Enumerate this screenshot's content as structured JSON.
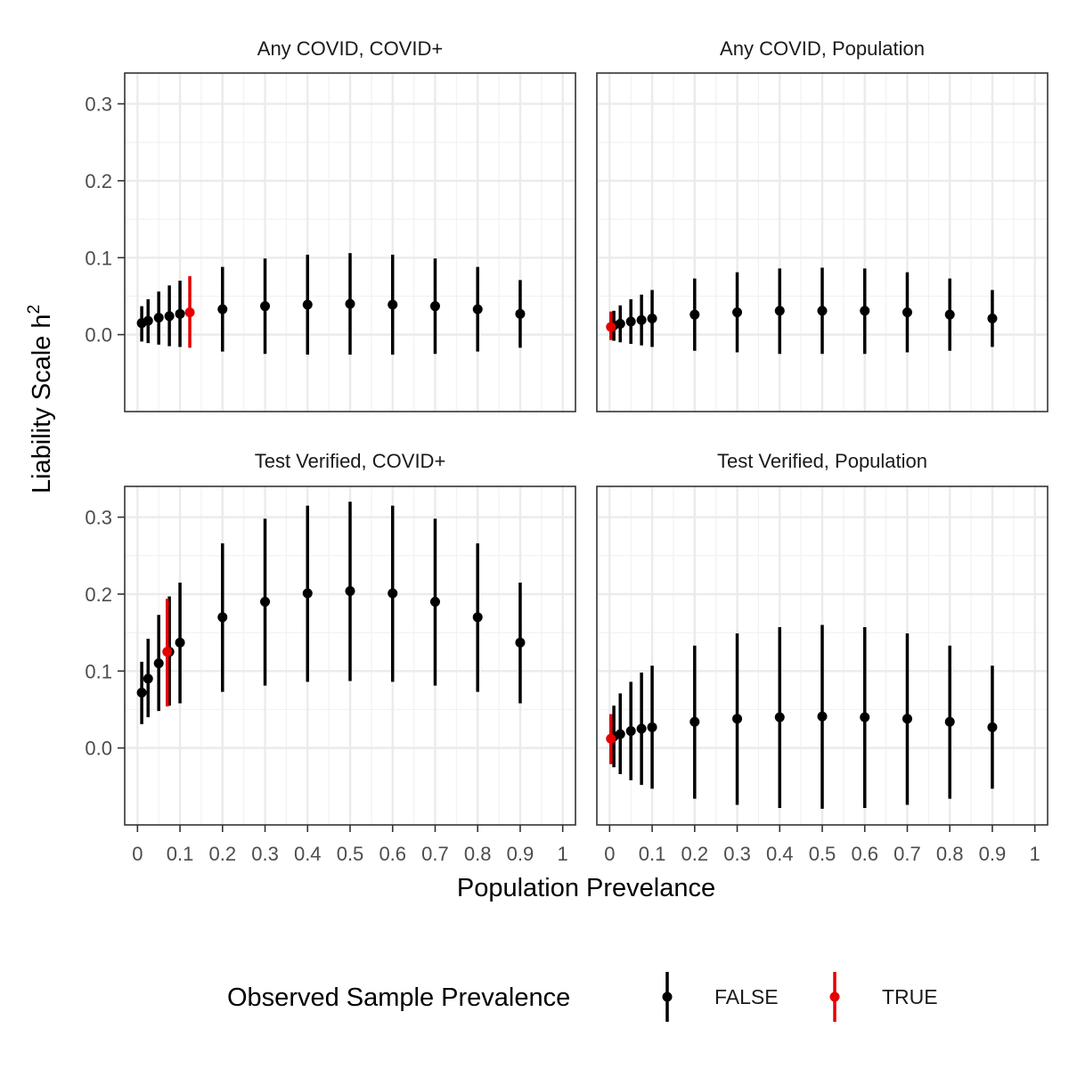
{
  "chart_data": {
    "type": "scatter",
    "subtype": "pointrange",
    "xlabel": "Population Prevelance",
    "ylabel": "Liability Scale h",
    "ylabel_superscript": "2",
    "x_ticks": [
      0,
      0.1,
      0.2,
      0.3,
      0.4,
      0.5,
      0.6,
      0.7,
      0.8,
      0.9,
      1
    ],
    "x_tick_labels": [
      "0",
      "0.1",
      "0.2",
      "0.3",
      "0.4",
      "0.5",
      "0.6",
      "0.7",
      "0.8",
      "0.9",
      "1"
    ],
    "y_ticks": [
      0,
      0.1,
      0.2,
      0.3
    ],
    "y_tick_labels": [
      "0.0",
      "0.1",
      "0.2",
      "0.3"
    ],
    "xlim": [
      -0.03,
      1.03
    ],
    "ylim": [
      -0.1,
      0.34
    ],
    "grid": true,
    "legend": {
      "title": "Observed Sample Prevalence",
      "position": "bottom",
      "entries": [
        {
          "label": "FALSE",
          "color": "#000000"
        },
        {
          "label": "TRUE",
          "color": "#e60000"
        }
      ]
    },
    "panels": [
      {
        "title": "Any COVID, COVID+",
        "points": [
          {
            "x": 0.01,
            "y": 0.015,
            "lo": -0.009,
            "hi": 0.037,
            "observed": false
          },
          {
            "x": 0.025,
            "y": 0.018,
            "lo": -0.011,
            "hi": 0.046,
            "observed": false
          },
          {
            "x": 0.05,
            "y": 0.022,
            "lo": -0.013,
            "hi": 0.056,
            "observed": false
          },
          {
            "x": 0.075,
            "y": 0.024,
            "lo": -0.015,
            "hi": 0.064,
            "observed": false
          },
          {
            "x": 0.1,
            "y": 0.027,
            "lo": -0.016,
            "hi": 0.07,
            "observed": false
          },
          {
            "x": 0.123,
            "y": 0.029,
            "lo": -0.017,
            "hi": 0.076,
            "observed": true
          },
          {
            "x": 0.2,
            "y": 0.033,
            "lo": -0.022,
            "hi": 0.088,
            "observed": false
          },
          {
            "x": 0.3,
            "y": 0.037,
            "lo": -0.025,
            "hi": 0.099,
            "observed": false
          },
          {
            "x": 0.4,
            "y": 0.039,
            "lo": -0.026,
            "hi": 0.104,
            "observed": false
          },
          {
            "x": 0.5,
            "y": 0.04,
            "lo": -0.026,
            "hi": 0.106,
            "observed": false
          },
          {
            "x": 0.6,
            "y": 0.039,
            "lo": -0.026,
            "hi": 0.104,
            "observed": false
          },
          {
            "x": 0.7,
            "y": 0.037,
            "lo": -0.025,
            "hi": 0.099,
            "observed": false
          },
          {
            "x": 0.8,
            "y": 0.033,
            "lo": -0.022,
            "hi": 0.088,
            "observed": false
          },
          {
            "x": 0.9,
            "y": 0.027,
            "lo": -0.017,
            "hi": 0.071,
            "observed": false
          }
        ]
      },
      {
        "title": "Any COVID, Population",
        "points": [
          {
            "x": 0.003,
            "y": 0.01,
            "lo": -0.007,
            "hi": 0.03,
            "observed": true
          },
          {
            "x": 0.01,
            "y": 0.012,
            "lo": -0.008,
            "hi": 0.031,
            "observed": false
          },
          {
            "x": 0.025,
            "y": 0.014,
            "lo": -0.01,
            "hi": 0.038,
            "observed": false
          },
          {
            "x": 0.05,
            "y": 0.017,
            "lo": -0.012,
            "hi": 0.046,
            "observed": false
          },
          {
            "x": 0.075,
            "y": 0.019,
            "lo": -0.014,
            "hi": 0.052,
            "observed": false
          },
          {
            "x": 0.1,
            "y": 0.021,
            "lo": -0.016,
            "hi": 0.058,
            "observed": false
          },
          {
            "x": 0.2,
            "y": 0.026,
            "lo": -0.021,
            "hi": 0.073,
            "observed": false
          },
          {
            "x": 0.3,
            "y": 0.029,
            "lo": -0.023,
            "hi": 0.081,
            "observed": false
          },
          {
            "x": 0.4,
            "y": 0.031,
            "lo": -0.025,
            "hi": 0.086,
            "observed": false
          },
          {
            "x": 0.5,
            "y": 0.031,
            "lo": -0.025,
            "hi": 0.087,
            "observed": false
          },
          {
            "x": 0.6,
            "y": 0.031,
            "lo": -0.025,
            "hi": 0.086,
            "observed": false
          },
          {
            "x": 0.7,
            "y": 0.029,
            "lo": -0.023,
            "hi": 0.081,
            "observed": false
          },
          {
            "x": 0.8,
            "y": 0.026,
            "lo": -0.021,
            "hi": 0.073,
            "observed": false
          },
          {
            "x": 0.9,
            "y": 0.021,
            "lo": -0.016,
            "hi": 0.058,
            "observed": false
          }
        ]
      },
      {
        "title": "Test Verified, COVID+",
        "points": [
          {
            "x": 0.01,
            "y": 0.072,
            "lo": 0.031,
            "hi": 0.112,
            "observed": false
          },
          {
            "x": 0.025,
            "y": 0.09,
            "lo": 0.04,
            "hi": 0.142,
            "observed": false
          },
          {
            "x": 0.05,
            "y": 0.11,
            "lo": 0.048,
            "hi": 0.173,
            "observed": false
          },
          {
            "x": 0.07,
            "y": 0.125,
            "lo": 0.054,
            "hi": 0.194,
            "observed": true
          },
          {
            "x": 0.075,
            "y": 0.125,
            "lo": 0.055,
            "hi": 0.197,
            "observed": false
          },
          {
            "x": 0.1,
            "y": 0.137,
            "lo": 0.058,
            "hi": 0.215,
            "observed": false
          },
          {
            "x": 0.2,
            "y": 0.17,
            "lo": 0.073,
            "hi": 0.266,
            "observed": false
          },
          {
            "x": 0.3,
            "y": 0.19,
            "lo": 0.081,
            "hi": 0.298,
            "observed": false
          },
          {
            "x": 0.4,
            "y": 0.201,
            "lo": 0.086,
            "hi": 0.315,
            "observed": false
          },
          {
            "x": 0.5,
            "y": 0.204,
            "lo": 0.087,
            "hi": 0.32,
            "observed": false
          },
          {
            "x": 0.6,
            "y": 0.201,
            "lo": 0.086,
            "hi": 0.315,
            "observed": false
          },
          {
            "x": 0.7,
            "y": 0.19,
            "lo": 0.081,
            "hi": 0.298,
            "observed": false
          },
          {
            "x": 0.8,
            "y": 0.17,
            "lo": 0.073,
            "hi": 0.266,
            "observed": false
          },
          {
            "x": 0.9,
            "y": 0.137,
            "lo": 0.058,
            "hi": 0.215,
            "observed": false
          }
        ]
      },
      {
        "title": "Test Verified, Population",
        "points": [
          {
            "x": 0.003,
            "y": 0.012,
            "lo": -0.021,
            "hi": 0.044,
            "observed": true
          },
          {
            "x": 0.01,
            "y": 0.015,
            "lo": -0.025,
            "hi": 0.055,
            "observed": false
          },
          {
            "x": 0.025,
            "y": 0.018,
            "lo": -0.034,
            "hi": 0.071,
            "observed": false
          },
          {
            "x": 0.05,
            "y": 0.022,
            "lo": -0.042,
            "hi": 0.086,
            "observed": false
          },
          {
            "x": 0.075,
            "y": 0.025,
            "lo": -0.048,
            "hi": 0.098,
            "observed": false
          },
          {
            "x": 0.1,
            "y": 0.027,
            "lo": -0.053,
            "hi": 0.107,
            "observed": false
          },
          {
            "x": 0.2,
            "y": 0.034,
            "lo": -0.066,
            "hi": 0.133,
            "observed": false
          },
          {
            "x": 0.3,
            "y": 0.038,
            "lo": -0.074,
            "hi": 0.149,
            "observed": false
          },
          {
            "x": 0.4,
            "y": 0.04,
            "lo": -0.078,
            "hi": 0.157,
            "observed": false
          },
          {
            "x": 0.5,
            "y": 0.041,
            "lo": -0.079,
            "hi": 0.16,
            "observed": false
          },
          {
            "x": 0.6,
            "y": 0.04,
            "lo": -0.078,
            "hi": 0.157,
            "observed": false
          },
          {
            "x": 0.7,
            "y": 0.038,
            "lo": -0.074,
            "hi": 0.149,
            "observed": false
          },
          {
            "x": 0.8,
            "y": 0.034,
            "lo": -0.066,
            "hi": 0.133,
            "observed": false
          },
          {
            "x": 0.9,
            "y": 0.027,
            "lo": -0.053,
            "hi": 0.107,
            "observed": false
          }
        ]
      }
    ]
  }
}
